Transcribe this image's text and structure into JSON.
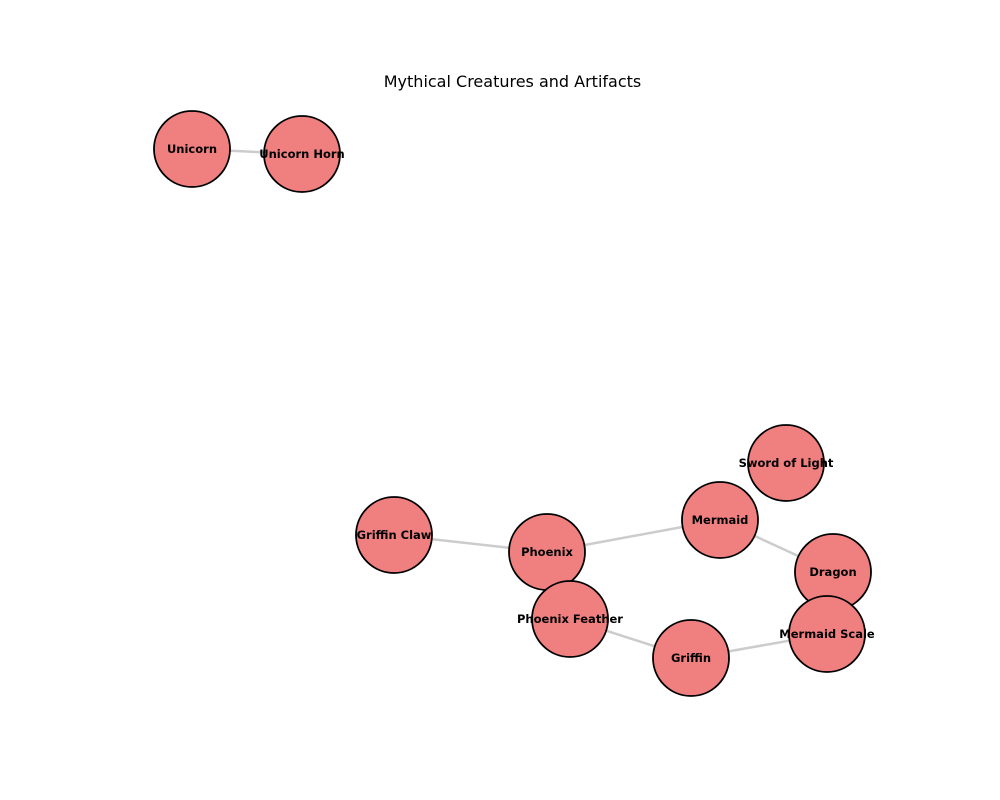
{
  "title": "Mythical Creatures and Artifacts",
  "colors": {
    "node_fill": "#f08080",
    "node_stroke": "#000000",
    "edge": "#cccccc"
  },
  "nodes": [
    {
      "id": "unicorn",
      "label": "Unicorn"
    },
    {
      "id": "unicorn-horn",
      "label": "Unicorn Horn"
    },
    {
      "id": "sword-of-light",
      "label": "Sword of Light"
    },
    {
      "id": "mermaid",
      "label": "Mermaid"
    },
    {
      "id": "griffin-claw",
      "label": "Griffin Claw"
    },
    {
      "id": "phoenix",
      "label": "Phoenix"
    },
    {
      "id": "dragon",
      "label": "Dragon"
    },
    {
      "id": "phoenix-feather",
      "label": "Phoenix Feather"
    },
    {
      "id": "mermaid-scale",
      "label": "Mermaid Scale"
    },
    {
      "id": "griffin",
      "label": "Griffin"
    }
  ],
  "edges": [
    {
      "source": "unicorn",
      "target": "unicorn-horn"
    },
    {
      "source": "griffin-claw",
      "target": "phoenix"
    },
    {
      "source": "phoenix",
      "target": "mermaid"
    },
    {
      "source": "mermaid",
      "target": "dragon"
    },
    {
      "source": "phoenix-feather",
      "target": "griffin"
    },
    {
      "source": "griffin",
      "target": "mermaid-scale"
    }
  ]
}
